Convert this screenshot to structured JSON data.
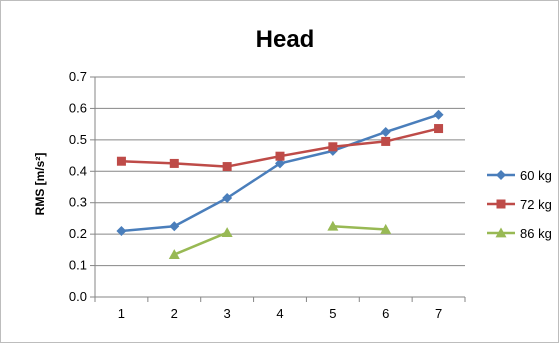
{
  "chart_data": {
    "type": "line",
    "title": "Head",
    "ylabel": "RMS [m/s²]",
    "xlabel": "",
    "x": [
      1,
      2,
      3,
      4,
      5,
      6,
      7
    ],
    "ylim": [
      0.0,
      0.7
    ],
    "yticks": [
      "0.0",
      "0.1",
      "0.2",
      "0.3",
      "0.4",
      "0.5",
      "0.6",
      "0.7"
    ],
    "grid": true,
    "legend_position": "right",
    "series": [
      {
        "name": "60 kg",
        "color": "#4a7ebb",
        "marker": "diamond",
        "values": [
          0.21,
          0.225,
          0.315,
          0.425,
          0.465,
          0.525,
          0.58
        ]
      },
      {
        "name": "72 kg",
        "color": "#be4b48",
        "marker": "square",
        "values": [
          0.432,
          0.425,
          0.415,
          0.448,
          0.478,
          0.495,
          0.536
        ]
      },
      {
        "name": "86 kg",
        "color": "#98b954",
        "marker": "triangle",
        "values": [
          null,
          0.135,
          0.205,
          null,
          0.225,
          0.215,
          null
        ]
      }
    ]
  }
}
